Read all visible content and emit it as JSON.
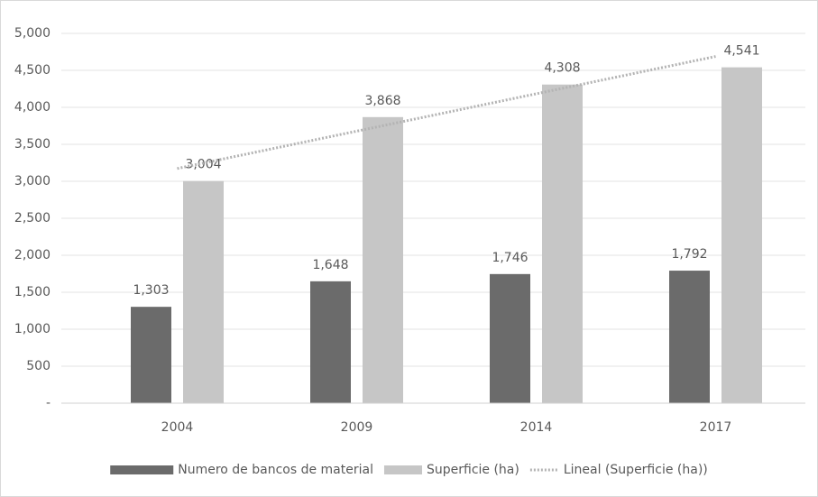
{
  "chart_data": {
    "type": "bar",
    "categories": [
      "2004",
      "2009",
      "2014",
      "2017"
    ],
    "series": [
      {
        "name": "Numero de bancos de material",
        "color": "#6b6b6b",
        "values": [
          1303,
          1648,
          1746,
          1792
        ],
        "value_labels": [
          "1,303",
          "1,648",
          "1,746",
          "1,792"
        ]
      },
      {
        "name": "Superficie (ha)",
        "color": "#c6c6c6",
        "values": [
          3004,
          3868,
          4308,
          4541
        ],
        "value_labels": [
          "3,004",
          "3,868",
          "4,308",
          "4,541"
        ]
      },
      {
        "name": "Lineal (Superficie (ha))",
        "type": "line",
        "color": "#b3b3b3",
        "values": [
          3173,
          3678,
          4183,
          4688
        ]
      }
    ],
    "ylim": [
      0,
      5000
    ],
    "yticks": [
      {
        "value": 0,
        "label": "-"
      },
      500,
      {
        "value": 1000,
        "label": "1,000"
      },
      {
        "value": 1500,
        "label": "1,500"
      },
      {
        "value": 2000,
        "label": "2,000"
      },
      {
        "value": 2500,
        "label": "2,500"
      },
      {
        "value": 3000,
        "label": "3,000"
      },
      {
        "value": 3500,
        "label": "3,500"
      },
      {
        "value": 4000,
        "label": "4,000"
      },
      {
        "value": 4500,
        "label": "4,500"
      },
      {
        "value": 5000,
        "label": "5,000"
      }
    ],
    "grid": true,
    "legend": "bottom"
  }
}
